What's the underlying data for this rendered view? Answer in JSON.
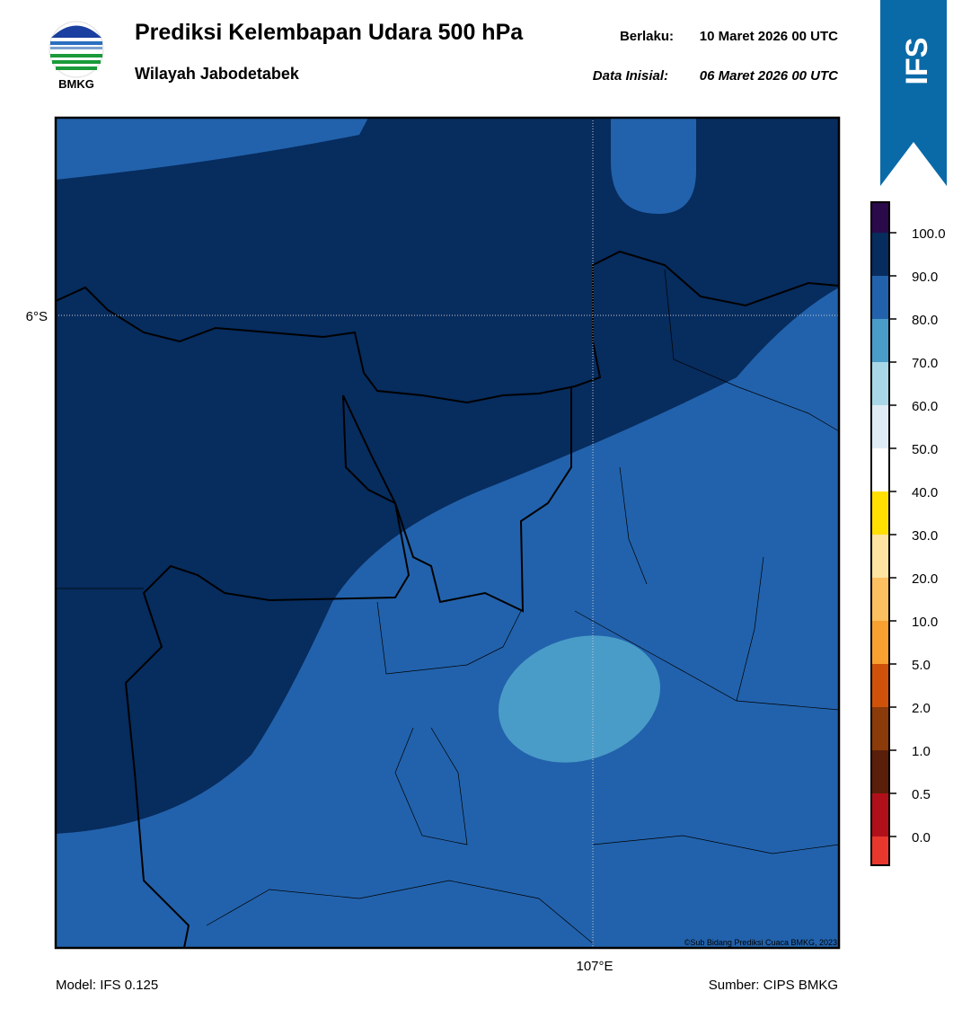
{
  "header": {
    "title": "Prediksi Kelembapan Udara 500 hPa",
    "subtitle": "Wilayah Jabodetabek",
    "valid_label": "Berlaku:",
    "valid_date": "10 Maret 2026 00 UTC",
    "init_label": "Data Inisial:",
    "init_date": "06 Maret 2026 00 UTC",
    "logo_text": "BMKG",
    "badge": "IFS"
  },
  "map": {
    "lat_label": "6°S",
    "lon_label": "107°E",
    "copyright": "©Sub Bidang Prediksi Cuaca BMKG, 2023"
  },
  "legend": {
    "labels": [
      "100.0",
      "90.0",
      "80.0",
      "70.0",
      "60.0",
      "50.0",
      "40.0",
      "30.0",
      "20.0",
      "10.0",
      "5.0",
      "2.0",
      "1.0",
      "0.5",
      "0.0"
    ]
  },
  "footer": {
    "model": "Model: IFS 0.125",
    "source": "Sumber: CIPS BMKG"
  }
}
